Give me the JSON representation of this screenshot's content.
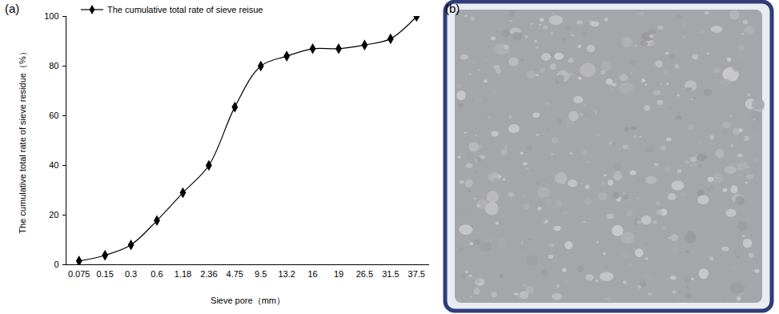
{
  "chart_data": {
    "type": "line",
    "panel_label": "(a)",
    "x_label": "Sieve pore（mm）",
    "y_label": "The cumulative total rate of sieve residue（%）",
    "categories": [
      "0.075",
      "0.15",
      "0.3",
      "0.6",
      "1.18",
      "2.36",
      "4.75",
      "9.5",
      "13.2",
      "16",
      "19",
      "26.5",
      "31.5",
      "37.5"
    ],
    "series": [
      {
        "name": "The cumulative total rate of sieve reisue",
        "color": "#000000",
        "marker": "diamond",
        "line_style": "solid",
        "values": [
          1.5,
          3.8,
          8,
          17.8,
          29,
          40,
          63.5,
          80,
          84,
          87,
          87,
          88.5,
          91,
          100
        ]
      }
    ],
    "ylim": [
      0,
      100
    ],
    "yticks": [
      0,
      20,
      40,
      60,
      80,
      100
    ],
    "grid": false,
    "legend": "top-left"
  },
  "photo": {
    "panel_label": "(b)"
  }
}
